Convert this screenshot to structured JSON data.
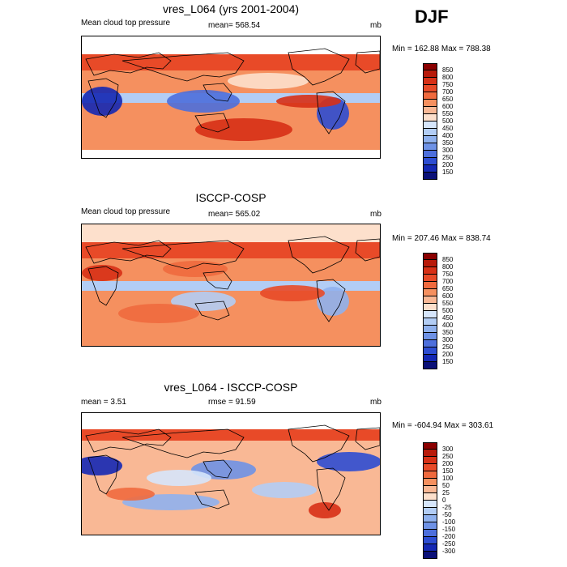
{
  "season": "DJF",
  "panels": [
    {
      "title": "vres_L064 (yrs 2001-2004)",
      "left_label": "Mean cloud top pressure",
      "center_label": "mean= 568.54",
      "units": "mb",
      "minmax": "Min = 162.88 Max = 788.38",
      "map_type": "field",
      "colorbar": {
        "labels": [
          "850",
          "800",
          "750",
          "700",
          "650",
          "600",
          "550",
          "500",
          "450",
          "400",
          "350",
          "300",
          "250",
          "200",
          "150"
        ],
        "colors": [
          "#8b0000",
          "#b81a0a",
          "#d73016",
          "#e84a28",
          "#f06a3e",
          "#f5905f",
          "#f9b895",
          "#fde0cc",
          "#d6e6fb",
          "#b2cdf5",
          "#8fb1ee",
          "#6e92e6",
          "#4d6fdc",
          "#2d4dd2",
          "#1428b4",
          "#0a1078"
        ]
      }
    },
    {
      "title": "ISCCP-COSP",
      "left_label": "Mean cloud top pressure",
      "center_label": "mean= 565.02",
      "units": "mb",
      "minmax": "Min = 207.46 Max = 838.74",
      "map_type": "field",
      "colorbar": {
        "labels": [
          "850",
          "800",
          "750",
          "700",
          "650",
          "600",
          "550",
          "500",
          "450",
          "400",
          "350",
          "300",
          "250",
          "200",
          "150"
        ],
        "colors": [
          "#8b0000",
          "#b81a0a",
          "#d73016",
          "#e84a28",
          "#f06a3e",
          "#f5905f",
          "#f9b895",
          "#fde0cc",
          "#d6e6fb",
          "#b2cdf5",
          "#8fb1ee",
          "#6e92e6",
          "#4d6fdc",
          "#2d4dd2",
          "#1428b4",
          "#0a1078"
        ]
      }
    },
    {
      "title": "vres_L064 - ISCCP-COSP",
      "left_label": "mean =   3.51",
      "center_label": "rmse =  91.59",
      "units": "mb",
      "minmax": "Min = -604.94 Max = 303.61",
      "map_type": "diff",
      "colorbar": {
        "labels": [
          "300",
          "250",
          "200",
          "150",
          "100",
          "50",
          "25",
          "0",
          "-25",
          "-50",
          "-100",
          "-150",
          "-200",
          "-250",
          "-300"
        ],
        "colors": [
          "#8b0000",
          "#b81a0a",
          "#d73016",
          "#e84a28",
          "#f06a3e",
          "#f5905f",
          "#f9b895",
          "#fde0cc",
          "#d6e6fb",
          "#b2cdf5",
          "#8fb1ee",
          "#6e92e6",
          "#4d6fdc",
          "#2d4dd2",
          "#1428b4",
          "#0a1078"
        ]
      }
    }
  ]
}
